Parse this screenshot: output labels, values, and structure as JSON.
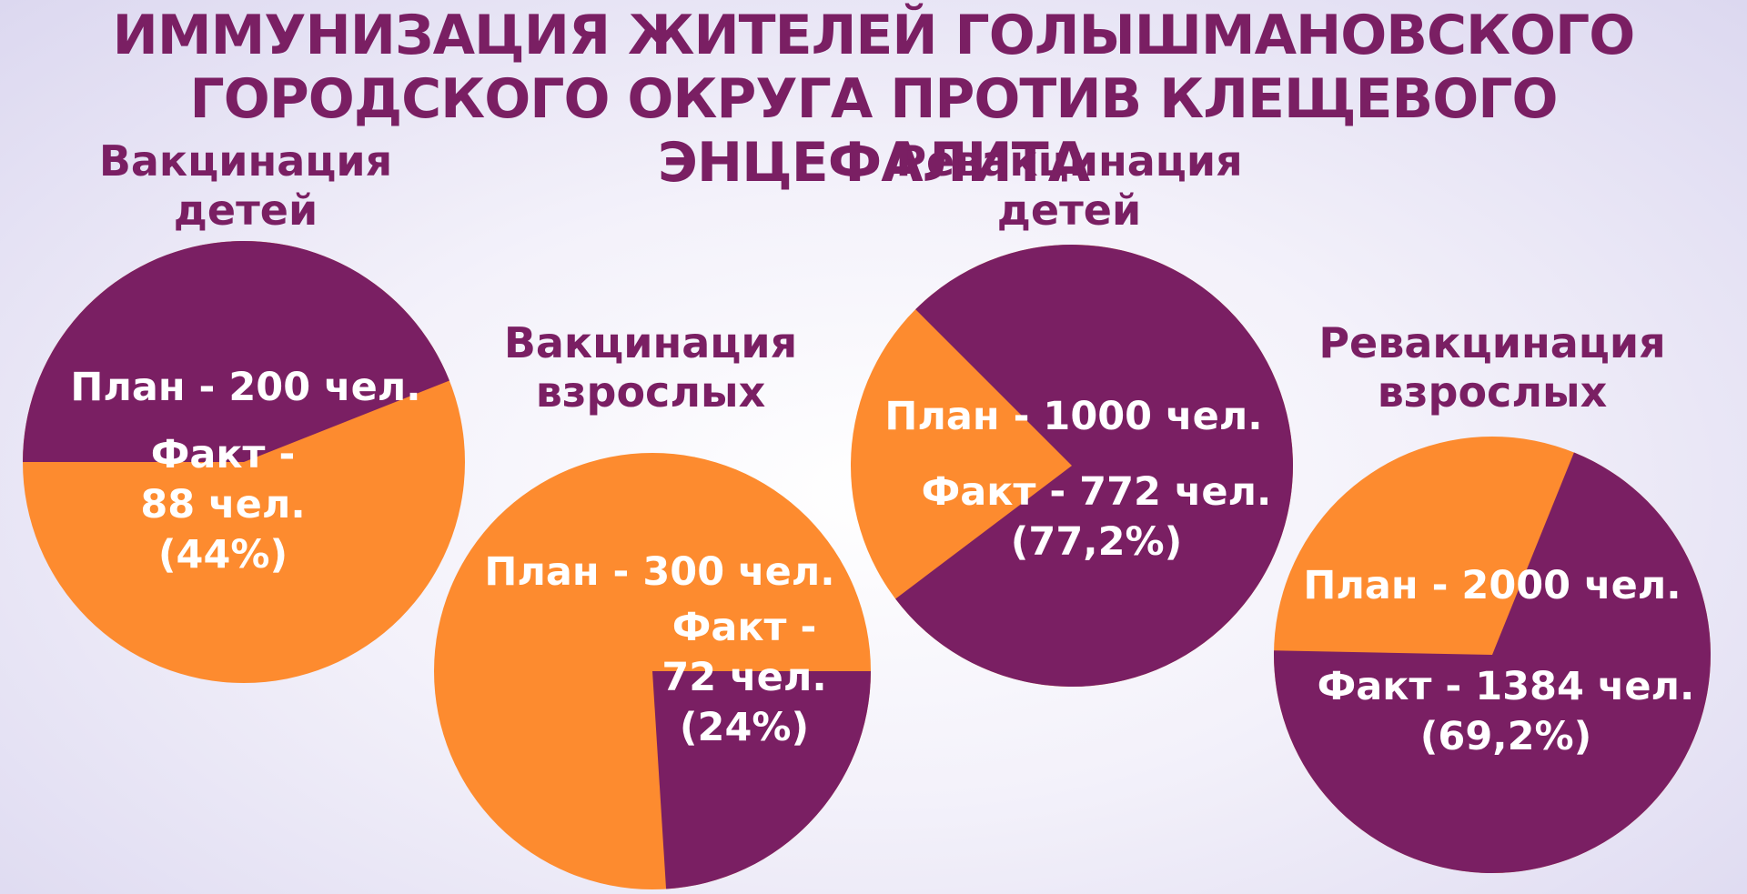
{
  "title": {
    "line1": "ИММУНИЗАЦИЯ ЖИТЕЛЕЙ ГОЛЫШМАНОВСКОГО",
    "line2": "ГОРОДСКОГО ОКРУГА ПРОТИВ КЛЕЩЕВОГО ЭНЦЕФАЛИТА"
  },
  "colors": {
    "plan": "#fd8b2f",
    "fact": "#7a1f63",
    "text": "#7a1f63"
  },
  "chart_data": [
    {
      "type": "pie",
      "title_lines": [
        "Вакцинация",
        "детей"
      ],
      "plan": 200,
      "fact": 88,
      "fact_percent": 44,
      "plan_label": [
        "План - 200 чел."
      ],
      "fact_label": [
        "Факт -",
        "88 чел.",
        "(44%)"
      ]
    },
    {
      "type": "pie",
      "title_lines": [
        "Вакцинация",
        "взрослых"
      ],
      "plan": 300,
      "fact": 72,
      "fact_percent": 24,
      "plan_label": [
        "План - 300 чел."
      ],
      "fact_label": [
        "Факт -",
        "72 чел.",
        "(24%)"
      ]
    },
    {
      "type": "pie",
      "title_lines": [
        "Ревакцинация",
        "детей"
      ],
      "plan": 1000,
      "fact": 772,
      "fact_percent": 77.2,
      "plan_label": [
        "План - 1000 чел."
      ],
      "fact_label": [
        "Факт - 772 чел.",
        "(77,2%)"
      ]
    },
    {
      "type": "pie",
      "title_lines": [
        "Ревакцинация",
        "взрослых"
      ],
      "plan": 2000,
      "fact": 1384,
      "fact_percent": 69.2,
      "plan_label": [
        "План - 2000 чел."
      ],
      "fact_label": [
        "Факт - 1384 чел.",
        "(69,2%)"
      ]
    }
  ]
}
